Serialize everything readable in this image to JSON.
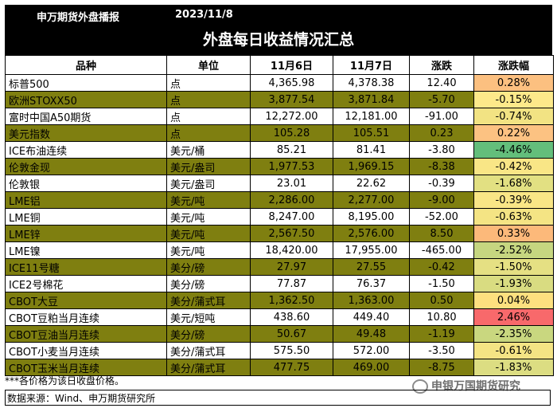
{
  "header": {
    "org": "申万期货外盘播报",
    "date": "2023/11/8"
  },
  "title": "外盘每日收益情况汇总",
  "columns": [
    "品种",
    "单位",
    "11月6日",
    "11月7日",
    "涨跌",
    "涨跌幅"
  ],
  "rows": [
    {
      "name": "标普500",
      "unit": "点",
      "d1": "4,365.98",
      "d2": "4,378.38",
      "chg": "12.40",
      "pct": "0.28%",
      "pct_color": "#fcc080",
      "row": "white"
    },
    {
      "name": "欧洲STOXX50",
      "unit": "点",
      "d1": "3,877.54",
      "d2": "3,871.84",
      "chg": "-5.70",
      "pct": "-0.15%",
      "pct_color": "#fde98a",
      "row": "olive"
    },
    {
      "name": "富时中国A50期货",
      "unit": "点",
      "d1": "12,272.00",
      "d2": "12,181.00",
      "chg": "-91.00",
      "pct": "-0.74%",
      "pct_color": "#f2e383",
      "row": "white"
    },
    {
      "name": "美元指数",
      "unit": "点",
      "d1": "105.28",
      "d2": "105.51",
      "chg": "0.23",
      "pct": "0.22%",
      "pct_color": "#fcc282",
      "row": "olive"
    },
    {
      "name": "ICE布油连续",
      "unit": "美元/桶",
      "d1": "85.21",
      "d2": "81.41",
      "chg": "-3.80",
      "pct": "-4.46%",
      "pct_color": "#63be7b",
      "row": "white"
    },
    {
      "name": "伦敦金现",
      "unit": "美元/盎司",
      "d1": "1,977.53",
      "d2": "1,969.15",
      "chg": "-8.38",
      "pct": "-0.42%",
      "pct_color": "#f9e686",
      "row": "olive"
    },
    {
      "name": "伦敦银",
      "unit": "美元/盎司",
      "d1": "23.01",
      "d2": "22.62",
      "chg": "-0.39",
      "pct": "-1.68%",
      "pct_color": "#e2e082",
      "row": "white"
    },
    {
      "name": "LME铝",
      "unit": "美元/吨",
      "d1": "2,286.00",
      "d2": "2,277.00",
      "chg": "-9.00",
      "pct": "-0.39%",
      "pct_color": "#f9e686",
      "row": "olive"
    },
    {
      "name": "LME铜",
      "unit": "美元/吨",
      "d1": "8,247.00",
      "d2": "8,195.00",
      "chg": "-52.00",
      "pct": "-0.63%",
      "pct_color": "#f4e484",
      "row": "white"
    },
    {
      "name": "LME锌",
      "unit": "美元/吨",
      "d1": "2,567.50",
      "d2": "2,576.00",
      "chg": "8.50",
      "pct": "0.33%",
      "pct_color": "#fcb97a",
      "row": "olive"
    },
    {
      "name": "LME镍",
      "unit": "美元/吨",
      "d1": "18,420.00",
      "d2": "17,955.00",
      "chg": "-465.00",
      "pct": "-2.52%",
      "pct_color": "#c6d680",
      "row": "white"
    },
    {
      "name": "ICE11号糖",
      "unit": "美分/磅",
      "d1": "27.97",
      "d2": "27.55",
      "chg": "-0.42",
      "pct": "-1.50%",
      "pct_color": "#e5e083",
      "row": "olive"
    },
    {
      "name": "ICE2号棉花",
      "unit": "美分/磅",
      "d1": "77.87",
      "d2": "76.37",
      "chg": "-1.50",
      "pct": "-1.93%",
      "pct_color": "#d9dc81",
      "row": "white"
    },
    {
      "name": "CBOT大豆",
      "unit": "美分/蒲式耳",
      "d1": "1,362.50",
      "d2": "1,363.00",
      "chg": "0.50",
      "pct": "0.04%",
      "pct_color": "#fde07f",
      "row": "olive"
    },
    {
      "name": "CBOT豆粕当月连续",
      "unit": "美元/短吨",
      "d1": "438.60",
      "d2": "449.40",
      "chg": "10.80",
      "pct": "2.46%",
      "pct_color": "#f8696b",
      "row": "white"
    },
    {
      "name": "CBOT豆油当月连续",
      "unit": "美分/磅",
      "d1": "50.67",
      "d2": "49.48",
      "chg": "-1.19",
      "pct": "-2.35%",
      "pct_color": "#c9d77f",
      "row": "olive"
    },
    {
      "name": "CBOT小麦当月连续",
      "unit": "美分/蒲式耳",
      "d1": "575.50",
      "d2": "572.00",
      "chg": "-3.50",
      "pct": "-0.61%",
      "pct_color": "#f4e484",
      "row": "white"
    },
    {
      "name": "CBOT玉米当月连续",
      "unit": "美分/蒲式耳",
      "d1": "477.75",
      "d2": "469.00",
      "chg": "-8.75",
      "pct": "-1.83%",
      "pct_color": "#dcdd82",
      "row": "olive"
    }
  ],
  "note": "***各价格为该日收盘价格。",
  "source": "数据来源：Wind、申万期货研究所",
  "watermark": "申银万国期货研究",
  "colors": {
    "olive_row": "#7f7f10",
    "header_bg": "#000000"
  }
}
